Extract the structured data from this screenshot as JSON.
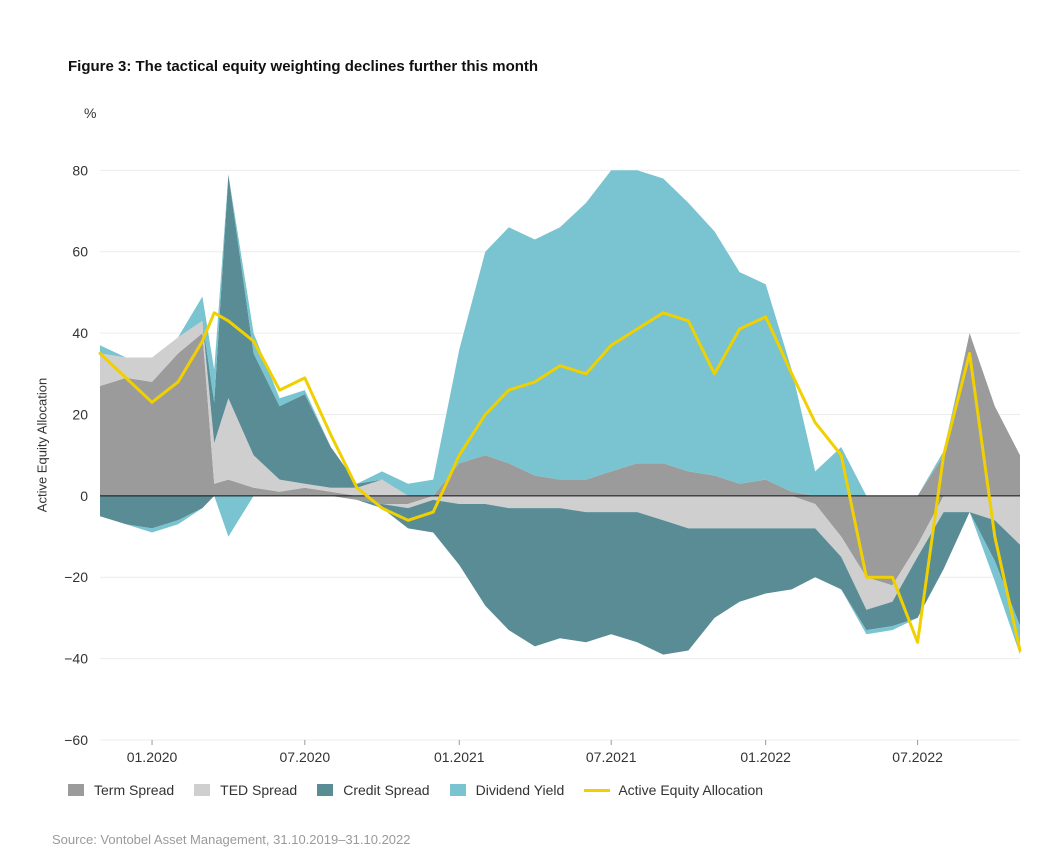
{
  "title": "Figure 3: The tactical equity weighting declines further this month",
  "unit": "%",
  "source": "Source: Vontobel Asset Management, 31.10.2019–31.10.2022",
  "chart_data": {
    "type": "area",
    "ylabel": "Active Equity Allocation",
    "ylim": [
      -60,
      85
    ],
    "yticks": [
      80,
      60,
      40,
      20,
      0,
      -20,
      -40,
      -60
    ],
    "xlim": [
      "2019-10-31",
      "2022-10-31"
    ],
    "xticks": [
      {
        "date": "2020-01-01",
        "label": "01.2020"
      },
      {
        "date": "2020-07-01",
        "label": "07.2020"
      },
      {
        "date": "2021-01-01",
        "label": "01.2021"
      },
      {
        "date": "2021-07-01",
        "label": "07.2021"
      },
      {
        "date": "2022-01-01",
        "label": "01.2022"
      },
      {
        "date": "2022-07-01",
        "label": "07.2022"
      }
    ],
    "grid": true,
    "legend_position": "bottom",
    "x": [
      "2019-10-31",
      "2019-12-01",
      "2020-01-01",
      "2020-02-01",
      "2020-03-01",
      "2020-03-15",
      "2020-04-01",
      "2020-05-01",
      "2020-06-01",
      "2020-07-01",
      "2020-08-01",
      "2020-09-01",
      "2020-10-01",
      "2020-11-01",
      "2020-12-01",
      "2021-01-01",
      "2021-02-01",
      "2021-03-01",
      "2021-04-01",
      "2021-05-01",
      "2021-06-01",
      "2021-07-01",
      "2021-08-01",
      "2021-09-01",
      "2021-10-01",
      "2021-11-01",
      "2021-12-01",
      "2022-01-01",
      "2022-02-01",
      "2022-03-01",
      "2022-04-01",
      "2022-05-01",
      "2022-06-01",
      "2022-07-01",
      "2022-08-01",
      "2022-09-01",
      "2022-10-01",
      "2022-10-31"
    ],
    "series": [
      {
        "name": "Term Spread",
        "color": "#9b9b9b",
        "values": [
          27,
          29,
          28,
          35,
          40,
          3,
          4,
          2,
          1,
          2,
          1,
          -1,
          -2,
          -2,
          0,
          8,
          10,
          8,
          5,
          4,
          4,
          6,
          8,
          8,
          6,
          5,
          3,
          4,
          1,
          -2,
          -10,
          -20,
          -22,
          -12,
          10,
          40,
          22,
          10
        ]
      },
      {
        "name": "TED Spread",
        "color": "#cfcfcf",
        "values": [
          8,
          5,
          6,
          4,
          3,
          10,
          20,
          8,
          3,
          1,
          1,
          2,
          4,
          -1,
          -1,
          -2,
          -2,
          -3,
          -3,
          -3,
          -4,
          -4,
          -4,
          -6,
          -8,
          -8,
          -8,
          -8,
          -8,
          -6,
          -5,
          -8,
          -4,
          -3,
          -4,
          -4,
          -6,
          -12
        ]
      },
      {
        "name": "Credit Spread",
        "color": "#5a8c96",
        "values": [
          -5,
          -7,
          -8,
          -6,
          -3,
          10,
          55,
          25,
          18,
          22,
          10,
          1,
          -1,
          -5,
          -8,
          -15,
          -25,
          -30,
          -34,
          -32,
          -32,
          -30,
          -32,
          -33,
          -30,
          -22,
          -18,
          -16,
          -15,
          -12,
          -8,
          -5,
          -6,
          -15,
          -14,
          0,
          -10,
          -20
        ]
      },
      {
        "name": "Dividend Yield",
        "color": "#79c4d0",
        "values": [
          2,
          0,
          -1,
          -1,
          6,
          8,
          -10,
          5,
          2,
          1,
          0,
          0,
          2,
          3,
          4,
          28,
          50,
          58,
          58,
          62,
          68,
          74,
          72,
          70,
          66,
          60,
          52,
          48,
          30,
          6,
          12,
          -1,
          -1,
          0,
          1,
          0,
          -5,
          -7
        ]
      },
      {
        "name": "Active Equity Allocation",
        "color": "#f0d000",
        "values": [
          35,
          29,
          23,
          28,
          38,
          45,
          43,
          38,
          26,
          29,
          15,
          2,
          -3,
          -6,
          -4,
          10,
          20,
          26,
          28,
          32,
          30,
          37,
          41,
          45,
          43,
          30,
          41,
          44,
          30,
          18,
          10,
          -20,
          -20,
          -36,
          10,
          35,
          -10,
          -38
        ]
      }
    ]
  }
}
